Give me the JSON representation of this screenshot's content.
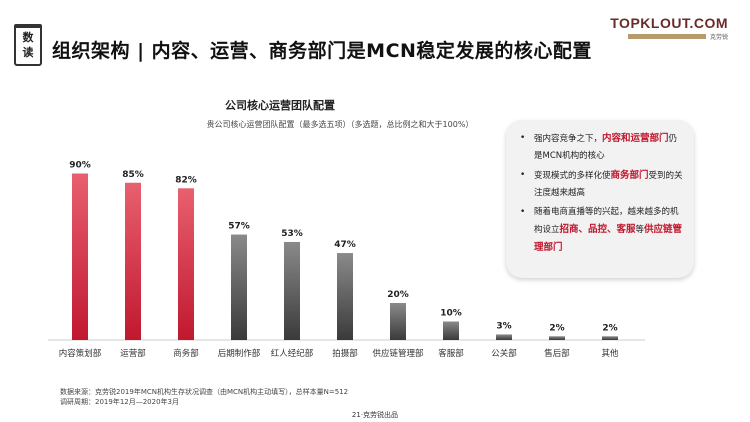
{
  "badge": {
    "line1": "数",
    "line2": "读"
  },
  "page_title": "组织架构 | 内容、运营、商务部门是MCN稳定发展的核心配置",
  "brand": {
    "logo": "TOPKLOUT.COM",
    "sub_cn": "克劳锐"
  },
  "chart_data": {
    "type": "bar",
    "title": "公司核心运营团队配置",
    "subtitle": "贵公司核心运营团队配置（最多选五项）（多选题，总比例之和大于100%）",
    "categories": [
      "内容策划部",
      "运营部",
      "商务部",
      "后期制作部",
      "红人经纪部",
      "拍摄部",
      "供应链管理部",
      "客服部",
      "公关部",
      "售后部",
      "其他"
    ],
    "values": [
      90,
      85,
      82,
      57,
      53,
      47,
      20,
      10,
      3,
      2,
      2
    ],
    "value_labels": [
      "90%",
      "85%",
      "82%",
      "57%",
      "53%",
      "47%",
      "20%",
      "10%",
      "3%",
      "2%",
      "2%"
    ],
    "highlighted": [
      true,
      true,
      true,
      false,
      false,
      false,
      false,
      false,
      false,
      false,
      false
    ],
    "ylim": [
      0,
      100
    ],
    "grid": false,
    "xlabel": "",
    "ylabel": ""
  },
  "colors": {
    "highlight_top": "#e8606f",
    "highlight_bottom": "#c0182f",
    "normal_top": "#8a8a8a",
    "normal_bottom": "#3a3a3a"
  },
  "callout": {
    "item1": {
      "pre": "强内容竞争之下，",
      "hl": "内容和运营部门",
      "post": "仍是MCN机构的核心"
    },
    "item2": {
      "pre": "变现模式的多样化使",
      "hl": "商务部门",
      "post": "受到的关注度越来越高"
    },
    "item3": {
      "pre": "随着电商直播等的兴起，越来越多的机构设立",
      "hl1": "招商、品控、客服",
      "mid": "等",
      "hl2": "供应链管理部门"
    }
  },
  "footnote": {
    "line1": "数据来源：克劳锐2019年MCN机构生存状况调查（由MCN机构主动填写），总样本量N=512",
    "line2": "调研周期：2019年12月—2020年3月"
  },
  "page_number": "21·克劳锐出品"
}
